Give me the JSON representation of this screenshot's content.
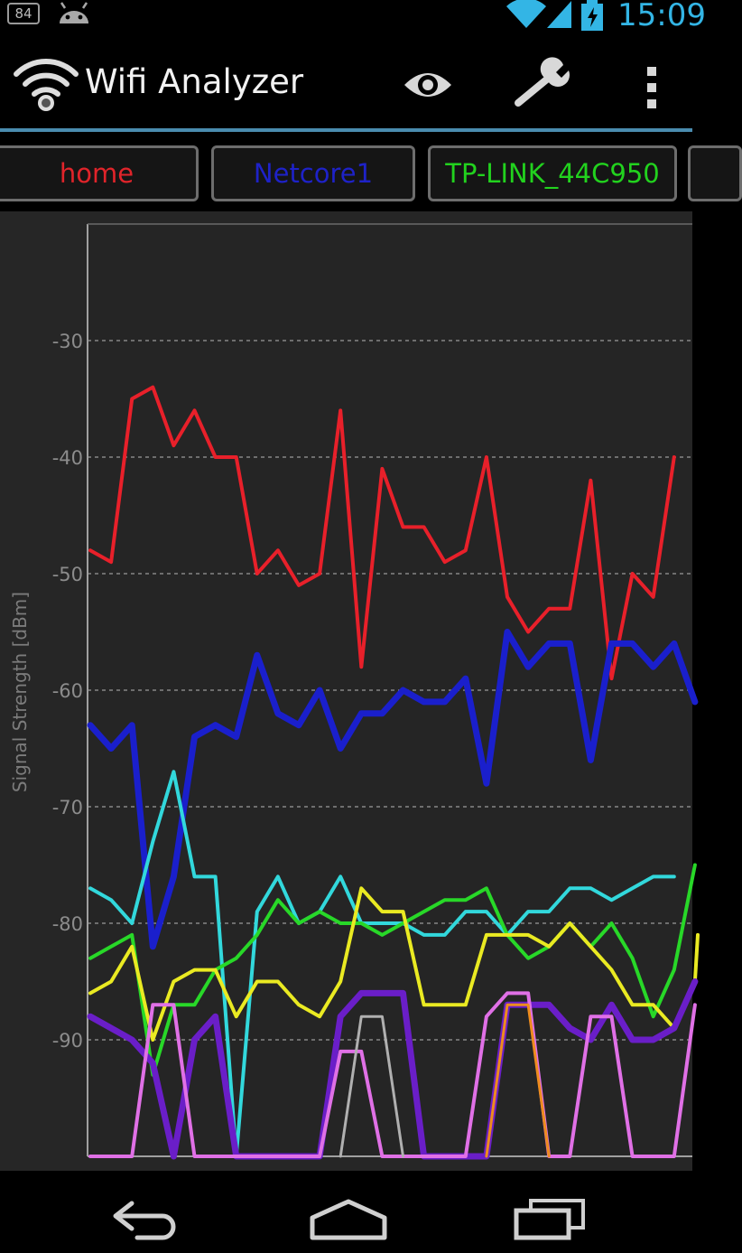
{
  "status_bar": {
    "badge": "84",
    "time": "15:09"
  },
  "app_bar": {
    "title": "Wifi Analyzer",
    "icons": [
      "wifi-logo-icon",
      "eye-icon",
      "wrench-icon",
      "overflow-menu-icon"
    ]
  },
  "tabs": [
    {
      "label": "home",
      "color": "#e0242a"
    },
    {
      "label": "Netcore1",
      "color": "#1e22c8"
    },
    {
      "label": "TP-LINK_44C950",
      "color": "#22d21e"
    }
  ],
  "nav_bar": {
    "icons": [
      "back-icon",
      "home-icon",
      "recents-icon"
    ]
  },
  "chart_data": {
    "type": "line",
    "ylabel": "Signal Strength [dBm]",
    "ylim": [
      -100,
      -20
    ],
    "yticks": [
      -30,
      -40,
      -50,
      -60,
      -70,
      -80,
      -90
    ],
    "grid": true,
    "series": [
      {
        "name": "home",
        "color": "#e8202a",
        "width": 4,
        "values": [
          -48,
          -49,
          -35,
          -34,
          -39,
          -36,
          -40,
          -40,
          -50,
          -48,
          -51,
          -50,
          -36,
          -58,
          -41,
          -46,
          -46,
          -49,
          -48,
          -40,
          -52,
          -55,
          -53,
          -53,
          -42,
          -59,
          -50,
          -52,
          -40
        ]
      },
      {
        "name": "Netcore1",
        "color": "#1a1fcc",
        "width": 7,
        "values": [
          -63,
          -65,
          -63,
          -82,
          -76,
          -64,
          -63,
          -64,
          -57,
          -62,
          -63,
          -60,
          -65,
          -62,
          -62,
          -60,
          -61,
          -61,
          -59,
          -68,
          -55,
          -58,
          -56,
          -56,
          -66,
          -56,
          -56,
          -58,
          -56,
          -61
        ]
      },
      {
        "name": "",
        "color": "#32d8dc",
        "width": 4,
        "values": [
          -77,
          -78,
          -80,
          -73,
          -67,
          -76,
          -76,
          -100,
          -79,
          -76,
          -80,
          -79,
          -76,
          -80,
          -80,
          -80,
          -81,
          -81,
          -79,
          -79,
          -81,
          -79,
          -79,
          -77,
          -77,
          -78,
          -77,
          -76,
          -76
        ]
      },
      {
        "name": "",
        "color": "#28d828",
        "width": 4,
        "values": [
          -83,
          -82,
          -81,
          -93,
          -87,
          -87,
          -84,
          -83,
          -81,
          -78,
          -80,
          -79,
          -80,
          -80,
          -81,
          -80,
          -79,
          -78,
          -78,
          -77,
          -81,
          -83,
          -82,
          -80,
          -82,
          -80,
          -83,
          -88,
          -84,
          -75
        ]
      },
      {
        "name": "",
        "color": "#eaea22",
        "width": 4,
        "values": [
          -86,
          -85,
          -82,
          -90,
          -85,
          -84,
          -84,
          -88,
          -85,
          -85,
          -87,
          -88,
          -85,
          -77,
          -79,
          -79,
          -87,
          -87,
          -87,
          -81,
          -81,
          -81,
          -82,
          -80,
          -82,
          -84,
          -87,
          -87,
          -89,
          -85,
          -81
        ]
      },
      {
        "name": "",
        "color": "#6a1ec8",
        "width": 7,
        "values": [
          -88,
          -89,
          -90,
          -92,
          -100,
          -90,
          -88,
          -100,
          -100,
          -100,
          -100,
          -100,
          -88,
          -86,
          -86,
          -86,
          -100,
          -100,
          -100,
          -100,
          -87,
          -87,
          -87,
          -89,
          -90,
          -87,
          -90,
          -90,
          -89,
          -85
        ]
      },
      {
        "name": "",
        "color": "#e070e6",
        "width": 4,
        "values": [
          -100,
          -100,
          -100,
          -87,
          -87,
          -100,
          -100,
          -100,
          -100,
          -100,
          -100,
          -100,
          -91,
          -91,
          -100,
          -100,
          -100,
          -100,
          -100,
          -88,
          -86,
          -86,
          -100,
          -100,
          -88,
          -88,
          -100,
          -100,
          -100,
          -87
        ]
      },
      {
        "name": "",
        "color": "#ee8c1e",
        "width": 3,
        "values": [
          -100,
          -87,
          -87,
          -100
        ]
      },
      {
        "name": "",
        "color": "#b0b0b0",
        "width": 3,
        "values": [
          -100,
          -88,
          -88,
          -100
        ]
      }
    ]
  }
}
